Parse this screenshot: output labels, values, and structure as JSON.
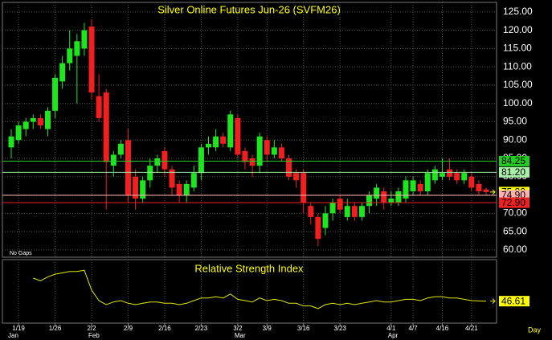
{
  "chart_data": {
    "type": "candlestick",
    "title": "Silver Online Futures Jun-26 (SVFM26)",
    "note": "No Gaps",
    "x_unit": "Day",
    "categories": [
      null,
      "1/19",
      null,
      null,
      null,
      null,
      "1/26",
      null,
      null,
      null,
      null,
      "2/2",
      null,
      null,
      null,
      null,
      "2/9",
      null,
      null,
      null,
      null,
      "2/16",
      null,
      null,
      null,
      null,
      "2/23",
      null,
      null,
      null,
      null,
      "3/2",
      null,
      null,
      null,
      "3/9",
      null,
      null,
      null,
      null,
      "3/16",
      null,
      null,
      null,
      null,
      "3/23",
      null,
      null,
      null,
      null,
      null,
      null,
      "4/1",
      null,
      null,
      "4/7",
      null,
      null,
      null,
      "4/16",
      null,
      null,
      null,
      "4/21",
      null,
      null
    ],
    "months": [
      "Jan",
      null,
      null,
      null,
      null,
      null,
      null,
      null,
      null,
      null,
      null,
      "Feb",
      null,
      null,
      null,
      null,
      null,
      null,
      null,
      null,
      null,
      null,
      null,
      null,
      null,
      null,
      null,
      null,
      null,
      null,
      null,
      "Mar",
      null,
      null,
      null,
      null,
      null,
      null,
      null,
      null,
      null,
      null,
      null,
      null,
      null,
      null,
      null,
      null,
      null,
      null,
      null,
      null,
      "Apr",
      null,
      null,
      null,
      null,
      null,
      null,
      null,
      null,
      null,
      null,
      null,
      null,
      null
    ],
    "open": [
      88,
      90,
      93,
      95,
      96,
      93,
      98,
      106,
      111,
      113,
      115,
      121,
      102,
      103,
      83,
      86,
      90,
      80,
      74,
      79,
      83,
      87,
      82,
      78,
      75,
      77,
      81,
      88,
      88,
      91,
      88,
      96,
      87,
      85,
      83,
      90,
      86,
      88,
      85,
      81,
      81,
      72,
      69,
      66,
      70,
      74,
      69,
      72,
      69,
      72,
      74,
      76,
      73,
      73,
      74,
      76,
      78,
      76,
      79,
      80,
      82,
      81,
      79,
      80,
      78,
      76.5
    ],
    "high": [
      93,
      95,
      96,
      97,
      97,
      99,
      108,
      113,
      120,
      119,
      122,
      123,
      108,
      104,
      87,
      90,
      93,
      82,
      80,
      85,
      86,
      88,
      83,
      79,
      79,
      83,
      89,
      91,
      93,
      92,
      98,
      97,
      88,
      86,
      92,
      91,
      90,
      89,
      86,
      82,
      82,
      73,
      70,
      72,
      74,
      75,
      74,
      73,
      73,
      76,
      78,
      77,
      76,
      77,
      80,
      80,
      79,
      82,
      83,
      85,
      85,
      82,
      82,
      81,
      79,
      77
    ],
    "low": [
      85,
      89,
      91,
      93,
      93,
      91,
      96,
      104,
      109,
      100,
      113,
      101,
      95,
      71,
      80,
      85,
      73,
      71,
      73,
      77,
      81,
      80,
      75,
      73,
      73,
      76,
      79,
      86,
      87,
      88,
      87,
      85,
      82,
      80,
      81,
      84,
      85,
      84,
      79,
      77,
      70,
      67,
      61,
      64,
      68,
      70,
      68,
      68,
      68,
      70,
      72,
      71,
      72,
      72,
      73,
      75,
      75,
      75,
      78,
      79,
      79,
      78,
      78,
      76,
      75,
      75
    ],
    "close": [
      91,
      94,
      95,
      96,
      94,
      98,
      107,
      111,
      115,
      117,
      120,
      103,
      96,
      84,
      86,
      89,
      75,
      74,
      79,
      83,
      85,
      82,
      77,
      75,
      78,
      81,
      88,
      89,
      91,
      89,
      97,
      86,
      84,
      83,
      91,
      86,
      88,
      85,
      80,
      79,
      73,
      69,
      63,
      70,
      73,
      71,
      72,
      69,
      72,
      75,
      77,
      73,
      74,
      76,
      79,
      79,
      76,
      81,
      82,
      81,
      80,
      79,
      81,
      77,
      76,
      75.8
    ],
    "up_color": "#1ee61e",
    "down_color": "#f02020",
    "ylim": [
      58,
      127.6
    ],
    "yticks": [
      {
        "value": 60,
        "label": "60.00"
      },
      {
        "value": 65,
        "label": "65.00"
      },
      {
        "value": 70,
        "label": "70.00"
      },
      {
        "value": 75,
        "label": "75.00"
      },
      {
        "value": 80,
        "label": "80.00"
      },
      {
        "value": 85,
        "label": "85.00"
      },
      {
        "value": 90,
        "label": "90.00"
      },
      {
        "value": 95,
        "label": "95.00"
      },
      {
        "value": 100,
        "label": "100.00"
      },
      {
        "value": 105,
        "label": "105.00"
      },
      {
        "value": 110,
        "label": "110.00"
      },
      {
        "value": 115,
        "label": "115.00"
      },
      {
        "value": 120,
        "label": "120.00"
      },
      {
        "value": 125,
        "label": "125.00"
      }
    ],
    "grid": true,
    "levels": [
      {
        "value": 84.25,
        "label": "84.25",
        "color": "#22cc22",
        "line": true
      },
      {
        "value": 81.2,
        "label": "81.20",
        "color": "#a8f0a8",
        "line": true
      },
      {
        "value": 75.8,
        "label": "75.80",
        "color": "#ffff00",
        "line": false
      },
      {
        "value": 74.9,
        "label": "74.90",
        "color": "#ffb0b0",
        "line": true
      },
      {
        "value": 72.9,
        "label": "72.90",
        "color": "#ee2222",
        "line": true
      }
    ],
    "rsi": {
      "title": "Relative Strength Index",
      "color": "#e6e600",
      "ylim": [
        30,
        78
      ],
      "values": [
        null,
        null,
        null,
        64,
        62,
        65,
        67,
        68,
        69,
        69,
        70,
        55,
        47,
        44,
        46,
        47,
        45,
        44,
        45,
        46,
        46,
        45,
        45,
        44,
        45,
        47,
        49,
        49,
        50,
        49,
        52,
        48,
        47,
        46,
        49,
        47,
        48,
        47,
        45,
        45,
        43,
        43,
        41,
        44,
        45,
        44,
        45,
        44,
        45,
        46,
        47,
        46,
        46,
        47,
        48,
        48,
        47,
        49,
        50,
        50,
        49,
        49,
        48,
        47,
        46.8,
        46.61
      ]
    }
  }
}
